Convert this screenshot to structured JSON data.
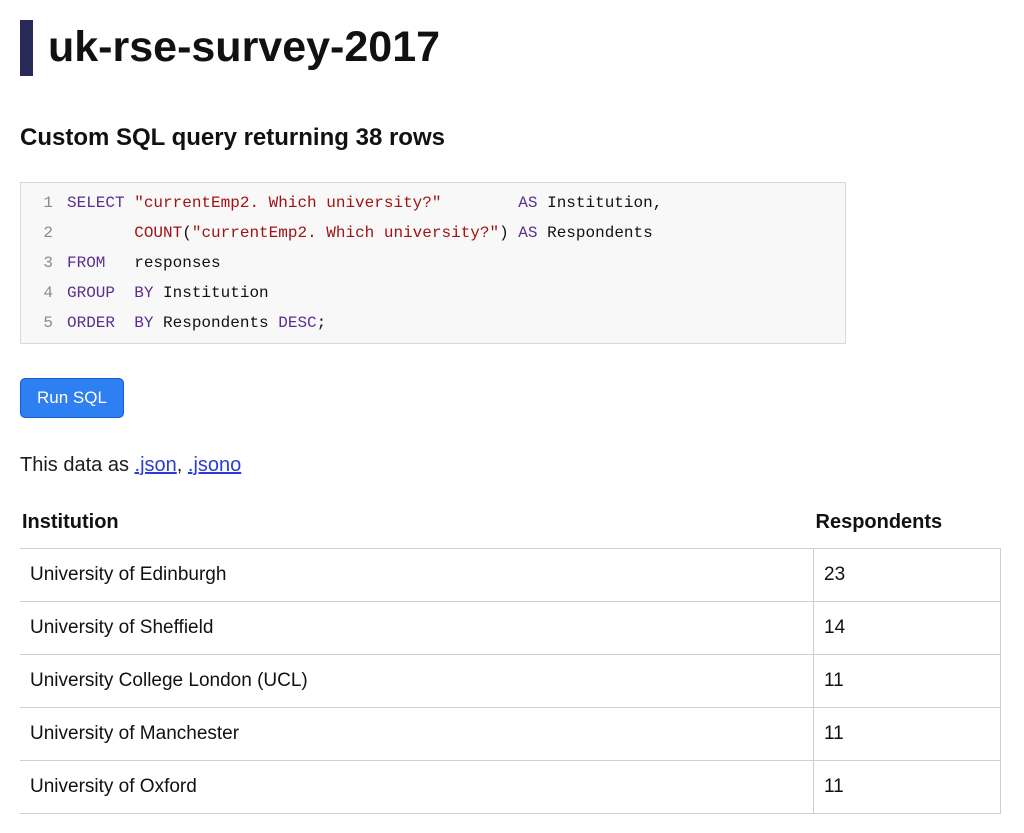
{
  "header": {
    "title": "uk-rse-survey-2017"
  },
  "query": {
    "summary": "Custom SQL query returning 38 rows",
    "run_button": "Run SQL",
    "sql_lines": [
      {
        "num": "1",
        "tokens": [
          {
            "t": "kw",
            "v": "SELECT"
          },
          {
            "t": "plain",
            "v": " "
          },
          {
            "t": "str",
            "v": "\"currentEmp2. Which university?\""
          },
          {
            "t": "plain",
            "v": "        "
          },
          {
            "t": "kw",
            "v": "AS"
          },
          {
            "t": "plain",
            "v": " Institution,"
          }
        ]
      },
      {
        "num": "2",
        "tokens": [
          {
            "t": "plain",
            "v": "       "
          },
          {
            "t": "fn",
            "v": "COUNT"
          },
          {
            "t": "plain",
            "v": "("
          },
          {
            "t": "str",
            "v": "\"currentEmp2. Which university?\""
          },
          {
            "t": "plain",
            "v": ") "
          },
          {
            "t": "kw",
            "v": "AS"
          },
          {
            "t": "plain",
            "v": " Respondents"
          }
        ]
      },
      {
        "num": "3",
        "tokens": [
          {
            "t": "kw",
            "v": "FROM"
          },
          {
            "t": "plain",
            "v": "   responses"
          }
        ]
      },
      {
        "num": "4",
        "tokens": [
          {
            "t": "kw",
            "v": "GROUP"
          },
          {
            "t": "plain",
            "v": "  "
          },
          {
            "t": "kw",
            "v": "BY"
          },
          {
            "t": "plain",
            "v": " Institution"
          }
        ]
      },
      {
        "num": "5",
        "tokens": [
          {
            "t": "kw",
            "v": "ORDER"
          },
          {
            "t": "plain",
            "v": "  "
          },
          {
            "t": "kw",
            "v": "BY"
          },
          {
            "t": "plain",
            "v": " Respondents "
          },
          {
            "t": "kw",
            "v": "DESC"
          },
          {
            "t": "plain",
            "v": ";"
          }
        ]
      }
    ]
  },
  "export": {
    "prefix": "This data as ",
    "separator": ", ",
    "links": [
      ".json",
      ".jsono"
    ]
  },
  "table": {
    "headers": [
      "Institution",
      "Respondents"
    ],
    "rows": [
      [
        "University of Edinburgh",
        "23"
      ],
      [
        "University of Sheffield",
        "14"
      ],
      [
        "University College London (UCL)",
        "11"
      ],
      [
        "University of Manchester",
        "11"
      ],
      [
        "University of Oxford",
        "11"
      ]
    ]
  },
  "colors": {
    "accent-bar": "#29295a",
    "run-button-bg": "#2d7ff2",
    "run-button-border": "#1b5fd0",
    "link": "#2b3cd9",
    "sql-keyword": "#5c2d91",
    "sql-string": "#a01313",
    "sql-function": "#a01313",
    "line-number": "#8a8a8a",
    "table-border": "#cfcfcf"
  }
}
